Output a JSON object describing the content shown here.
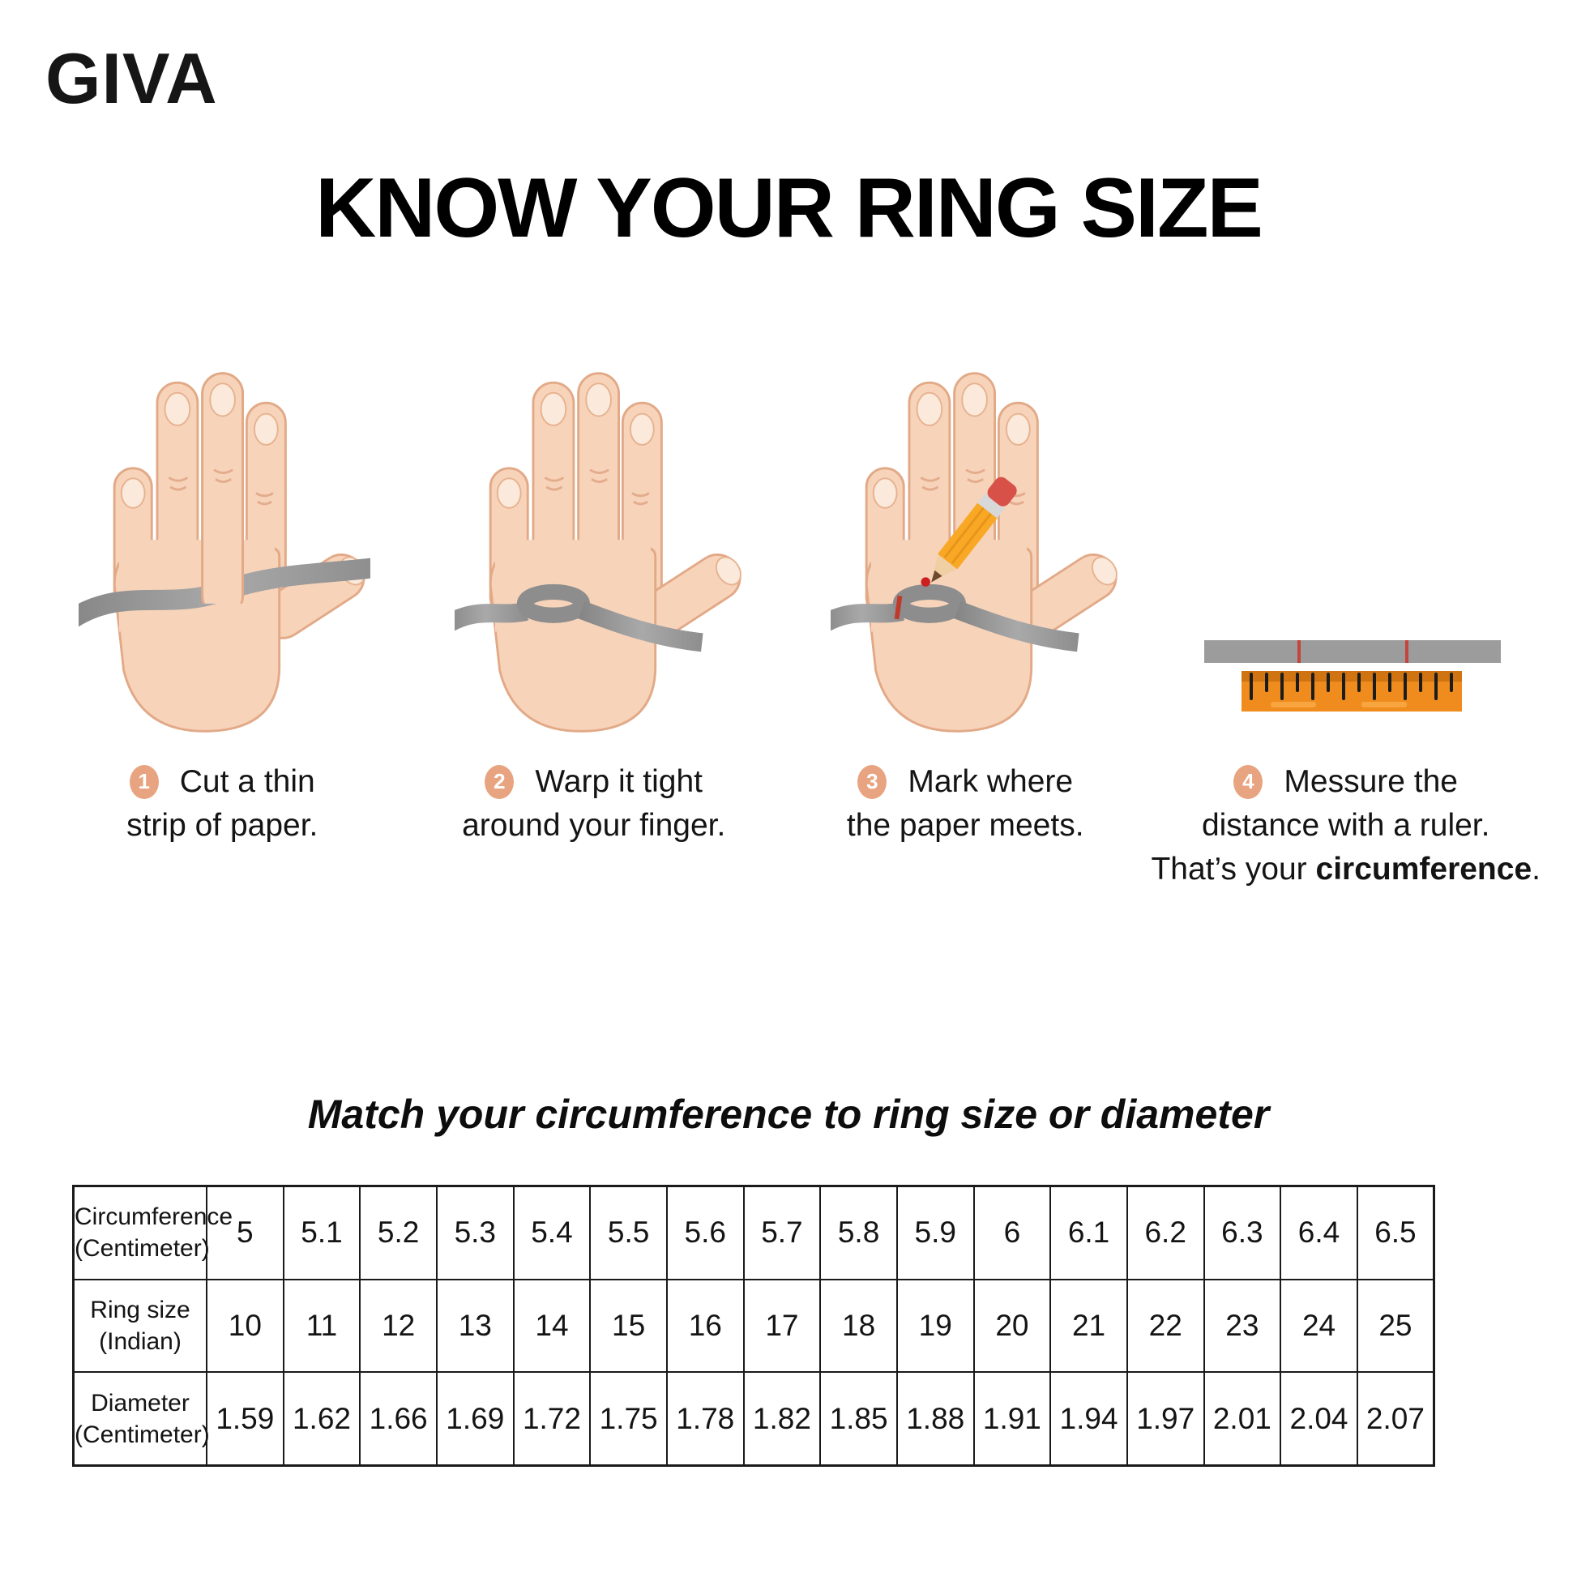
{
  "brand": {
    "name": "GIVA"
  },
  "title": "KNOW YOUR RING SIZE",
  "steps": [
    {
      "number": "1",
      "line1": "Cut a thin",
      "line2": "strip of paper."
    },
    {
      "number": "2",
      "line1": "Warp it tight",
      "line2": "around your finger."
    },
    {
      "number": "3",
      "line1": "Mark where",
      "line2": "the paper meets."
    },
    {
      "number": "4",
      "line1": "Messure the",
      "line2": "distance with a ruler.",
      "line3_prefix": "That’s your ",
      "line3_bold": "circumference",
      "line3_suffix": "."
    }
  ],
  "match_section": {
    "subtitle": "Match your circumference to ring size or diameter"
  },
  "table": {
    "rows": [
      {
        "label_line1": "Circumference",
        "label_line2": "(Centimeter)",
        "values": [
          "5",
          "5.1",
          "5.2",
          "5.3",
          "5.4",
          "5.5",
          "5.6",
          "5.7",
          "5.8",
          "5.9",
          "6",
          "6.1",
          "6.2",
          "6.3",
          "6.4",
          "6.5"
        ]
      },
      {
        "label_line1": "Ring size",
        "label_line2": "(Indian)",
        "values": [
          "10",
          "11",
          "12",
          "13",
          "14",
          "15",
          "16",
          "17",
          "18",
          "19",
          "20",
          "21",
          "22",
          "23",
          "24",
          "25"
        ]
      },
      {
        "label_line1": "Diameter",
        "label_line2": "(Centimeter)",
        "values": [
          "1.59",
          "1.62",
          "1.66",
          "1.69",
          "1.72",
          "1.75",
          "1.78",
          "1.82",
          "1.85",
          "1.88",
          "1.91",
          "1.94",
          "1.97",
          "2.01",
          "2.04",
          "2.07"
        ]
      }
    ]
  },
  "colors": {
    "badge": "#e8a480",
    "skin": "#f7d3ba",
    "skin_outline": "#e2a987",
    "strip_gray": "#9a9a9a",
    "ruler_orange": "#ef8c1d",
    "mark_red": "#c03a2b",
    "text": "#1b1b1b"
  }
}
